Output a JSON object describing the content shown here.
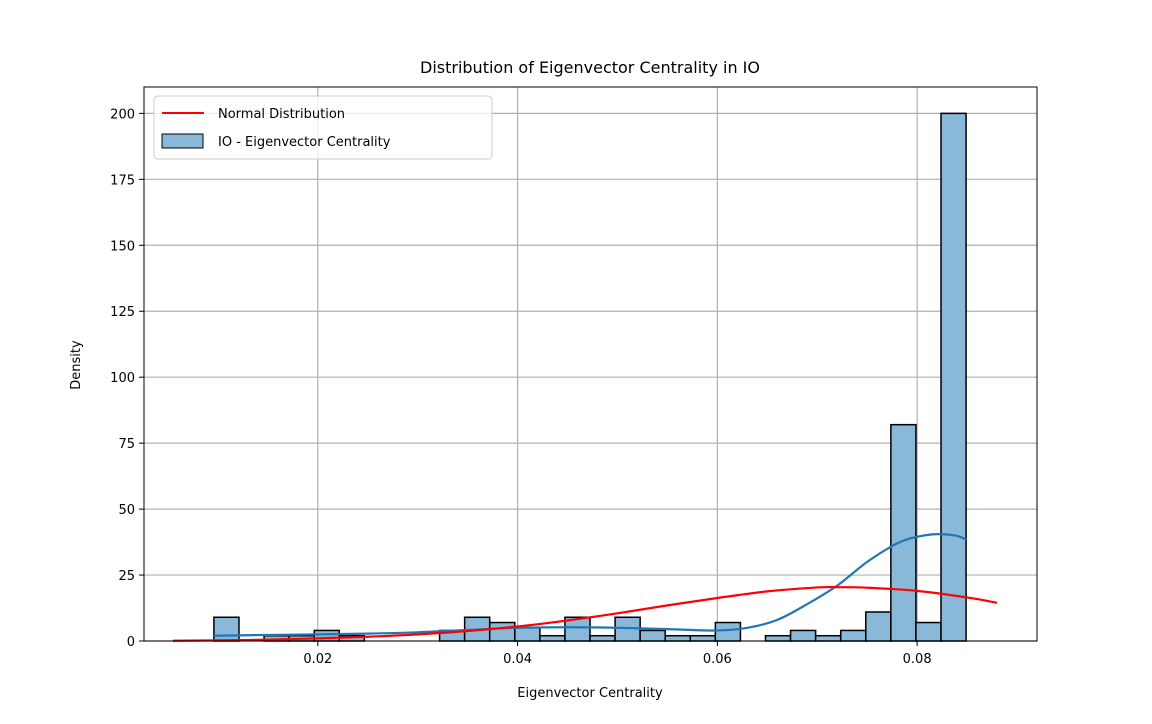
{
  "colors": {
    "bar_fill": "#8ab8d9",
    "bar_edge": "#000000",
    "kde_line": "#1f77b4",
    "normal_line": "#ff0000",
    "grid": "#b0b0b0",
    "axis": "#000000"
  },
  "chart_data": {
    "type": "bar",
    "title": "Distribution of Eigenvector Centrality in IO",
    "xlabel": "Eigenvector Centrality",
    "ylabel": "Density",
    "xlim": [
      0.0026,
      0.092
    ],
    "ylim": [
      0,
      210
    ],
    "xticks": [
      0.02,
      0.04,
      0.06,
      0.08
    ],
    "xtick_labels": [
      "0.02",
      "0.04",
      "0.06",
      "0.08"
    ],
    "yticks": [
      0,
      25,
      50,
      75,
      100,
      125,
      150,
      175,
      200
    ],
    "ytick_labels": [
      "0",
      "25",
      "50",
      "75",
      "100",
      "125",
      "150",
      "175",
      "200"
    ],
    "grid": true,
    "legend_position": "top-left",
    "legend": [
      {
        "label": "Normal Distribution",
        "kind": "line"
      },
      {
        "label": "IO - Eigenvector Centrality",
        "kind": "patch"
      }
    ],
    "histogram": {
      "series_name": "IO - Eigenvector Centrality",
      "bin_start": 0.0096,
      "bin_width": 0.00251,
      "values": [
        9,
        0,
        2,
        2,
        4,
        2,
        0,
        0,
        0,
        4,
        9,
        7,
        5,
        2,
        9,
        2,
        9,
        4,
        2,
        2,
        7,
        0,
        2,
        4,
        2,
        4,
        11,
        82,
        7,
        200
      ]
    },
    "kde_curve": {
      "series_name": "KDE",
      "x": [
        0.0096,
        0.015,
        0.02,
        0.025,
        0.03,
        0.035,
        0.04,
        0.045,
        0.05,
        0.055,
        0.06,
        0.063,
        0.066,
        0.069,
        0.072,
        0.075,
        0.078,
        0.08,
        0.082,
        0.0838,
        0.0849
      ],
      "y": [
        2,
        2.3,
        2.5,
        2.8,
        3.3,
        4.2,
        5,
        5.2,
        5,
        4.5,
        4,
        5,
        8,
        14,
        21,
        30,
        37,
        39.5,
        40.5,
        40,
        38.5
      ]
    },
    "normal_curve": {
      "series_name": "Normal Distribution",
      "x": [
        0.0055,
        0.01,
        0.015,
        0.02,
        0.025,
        0.03,
        0.035,
        0.04,
        0.045,
        0.05,
        0.055,
        0.06,
        0.065,
        0.07,
        0.072,
        0.075,
        0.08,
        0.085,
        0.088
      ],
      "y": [
        0.1,
        0.25,
        0.5,
        1.0,
        1.6,
        2.5,
        3.8,
        5.5,
        7.8,
        10.5,
        13.5,
        16.3,
        18.8,
        20.3,
        20.4,
        20.2,
        19,
        16.5,
        14.5
      ]
    }
  }
}
